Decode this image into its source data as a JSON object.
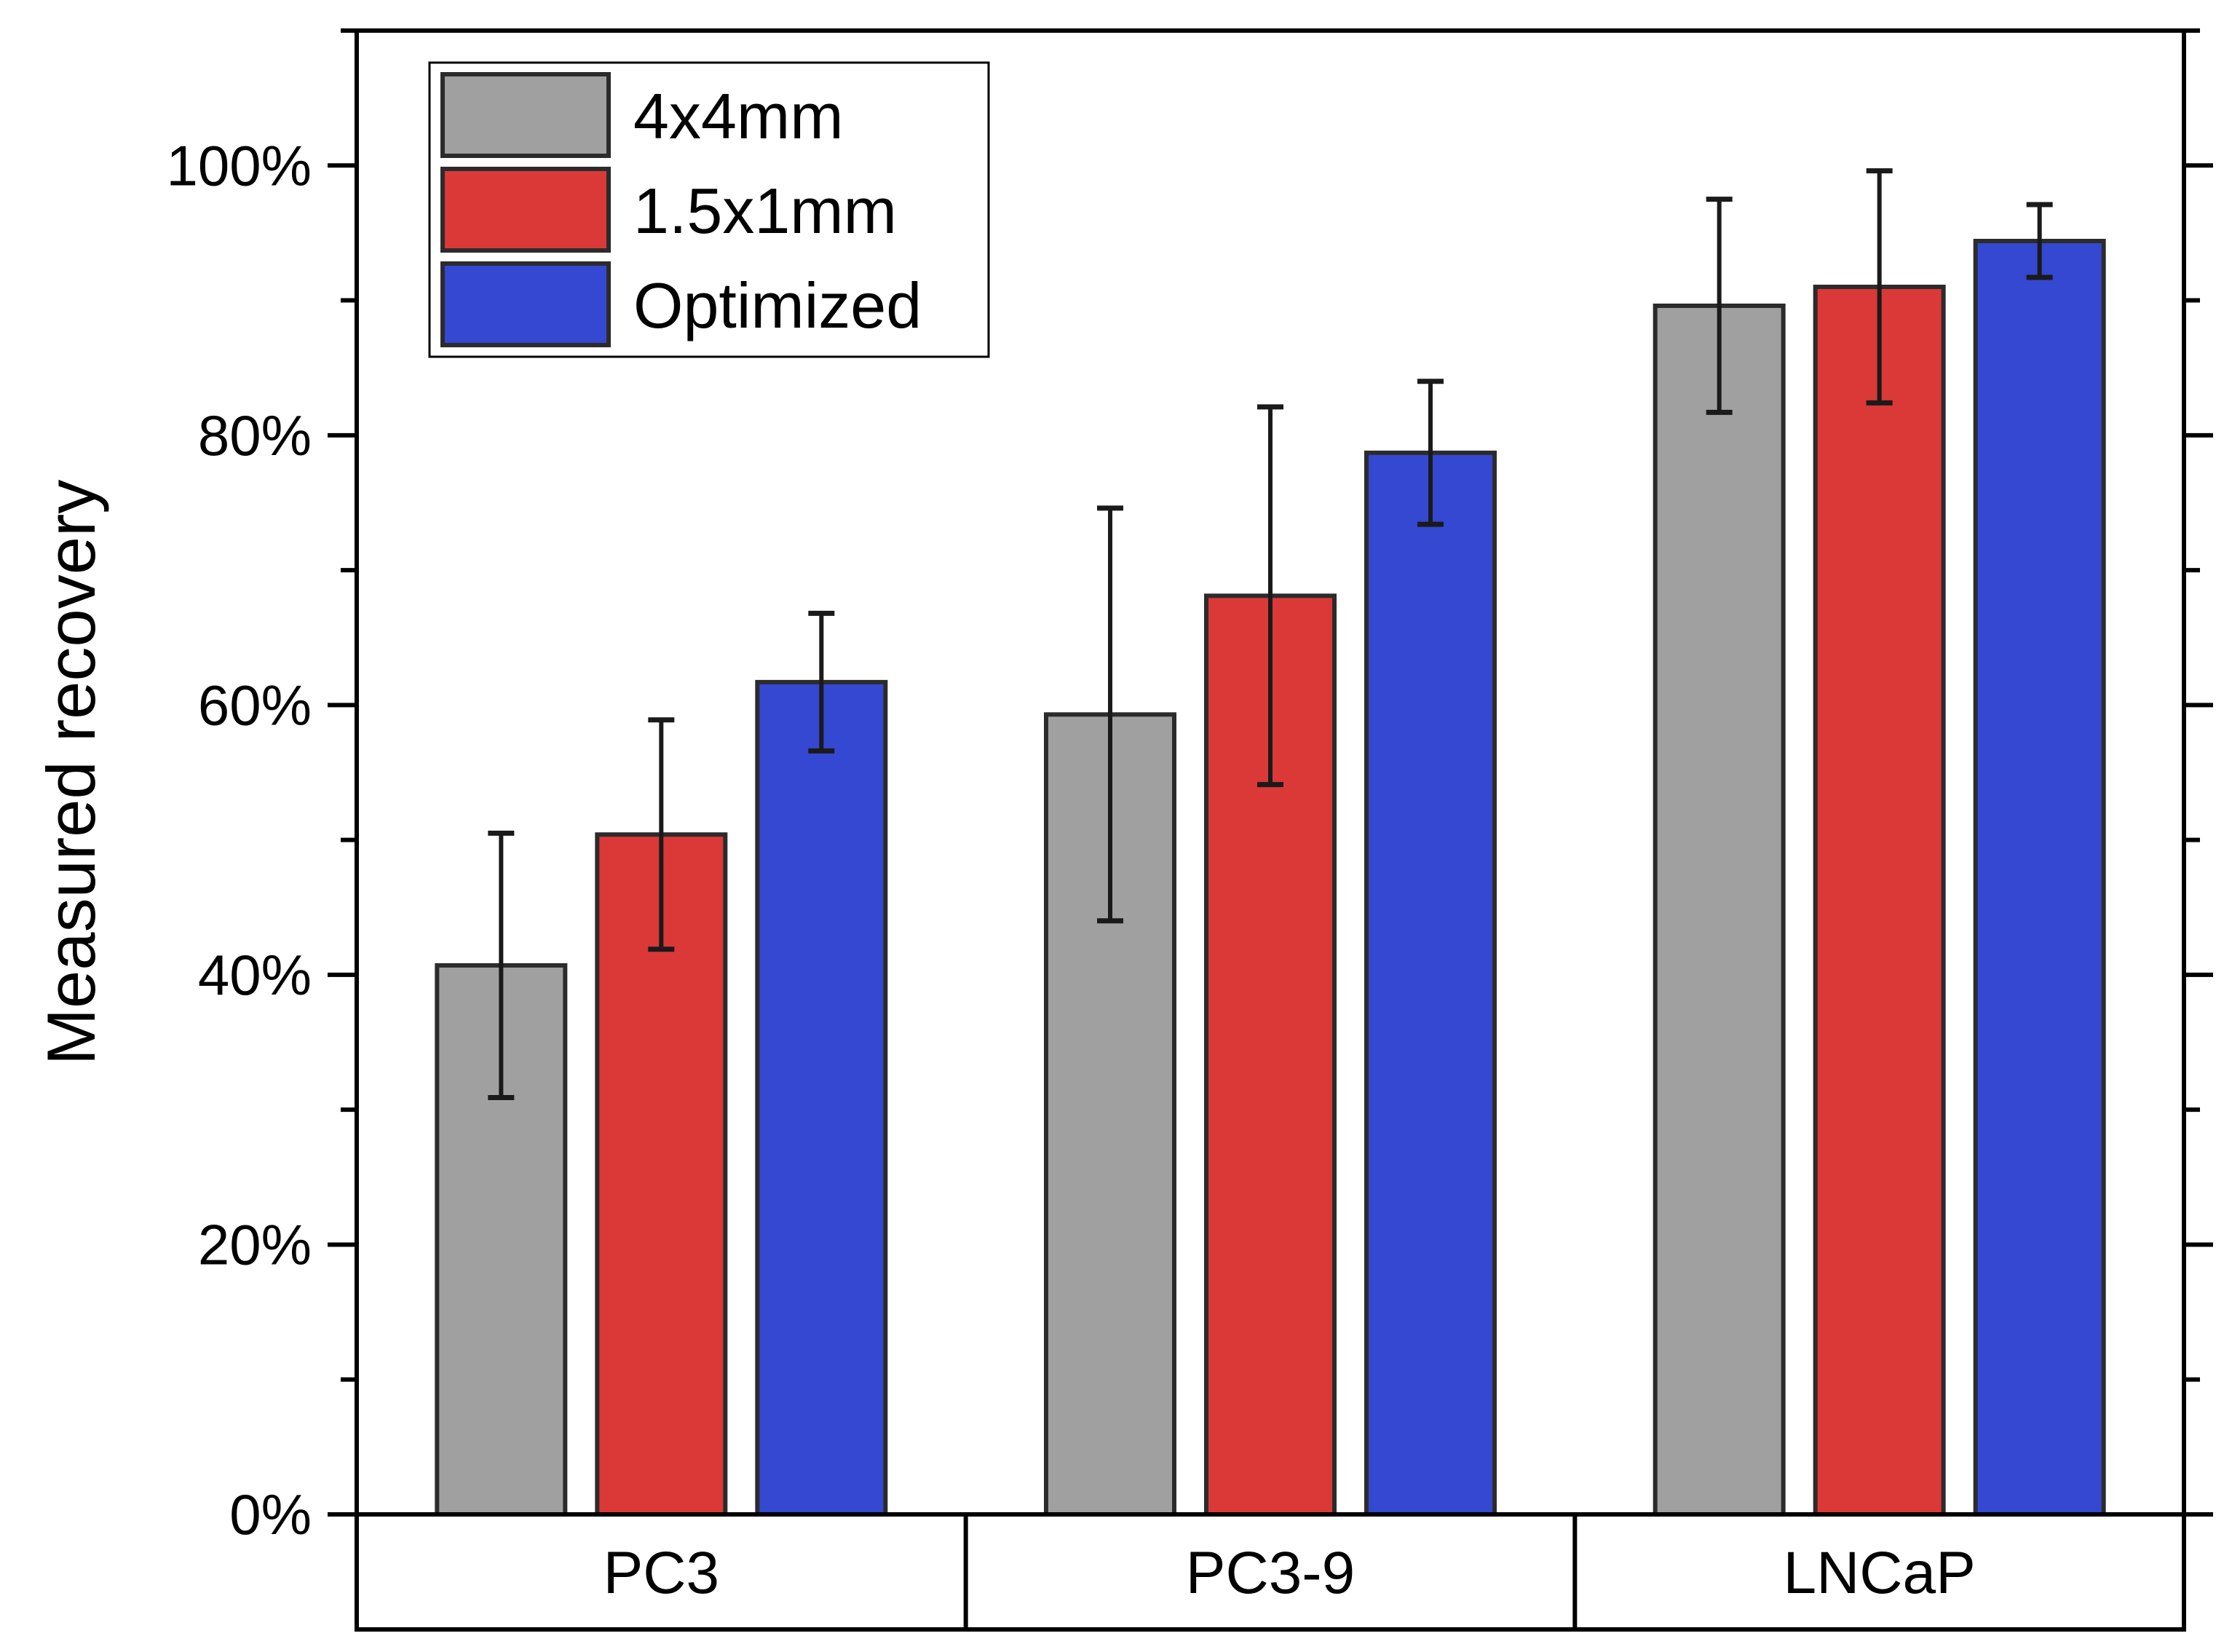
{
  "chart_data": {
    "type": "bar",
    "title": "",
    "xlabel": "",
    "ylabel": "Measured recovery",
    "ylim": [
      0,
      1.1
    ],
    "yticks": [
      0,
      0.2,
      0.4,
      0.6,
      0.8,
      1.0
    ],
    "ytick_labels": [
      "0%",
      "20%",
      "40%",
      "60%",
      "80%",
      "100%"
    ],
    "categories": [
      "PC3",
      "PC3-9",
      "LNCaP"
    ],
    "series": [
      {
        "name": "4x4mm",
        "color": "#a0a0a0",
        "values": [
          0.407,
          0.593,
          0.896
        ],
        "errors": [
          0.098,
          0.153,
          0.079
        ]
      },
      {
        "name": "1.5x1mm",
        "color": "#db3838",
        "values": [
          0.504,
          0.681,
          0.91
        ],
        "errors": [
          0.085,
          0.14,
          0.086
        ]
      },
      {
        "name": "Optimized",
        "color": "#3448d2",
        "values": [
          0.617,
          0.787,
          0.944
        ],
        "errors": [
          0.051,
          0.053,
          0.027
        ]
      }
    ],
    "legend": {
      "position": "top-left"
    },
    "grid": false
  }
}
